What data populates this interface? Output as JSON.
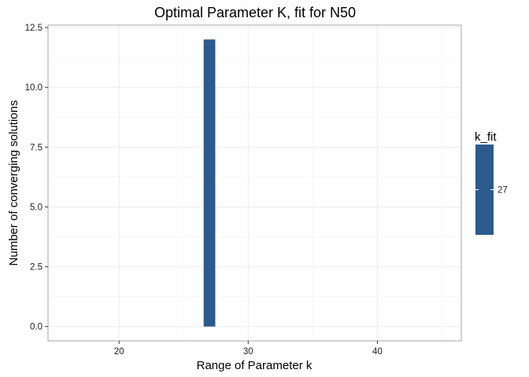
{
  "chart_data": {
    "type": "bar",
    "title": "Optimal Parameter K, fit for N50",
    "xlabel": "Range of Parameter k",
    "ylabel": "Number of converging solutions",
    "xlim": [
      14.5,
      46.5
    ],
    "ylim": [
      -0.6,
      12.6
    ],
    "x_major_ticks": [
      20,
      30,
      40
    ],
    "x_minor_ticks": [
      15,
      25,
      35,
      45
    ],
    "y_major_ticks": [
      0.0,
      2.5,
      5.0,
      7.5,
      10.0,
      12.5
    ],
    "y_tick_labels": [
      "0.0",
      "2.5",
      "5.0",
      "7.5",
      "10.0",
      "12.5"
    ],
    "x_tick_labels": [
      "20",
      "30",
      "40"
    ],
    "bar_width": 0.9,
    "bars": [
      {
        "x": 27,
        "value": 12
      }
    ],
    "bar_color": "#2b5b8c",
    "grid": true,
    "legend": {
      "title": "k_fit",
      "labels": [
        "27"
      ],
      "placement": "right"
    }
  }
}
